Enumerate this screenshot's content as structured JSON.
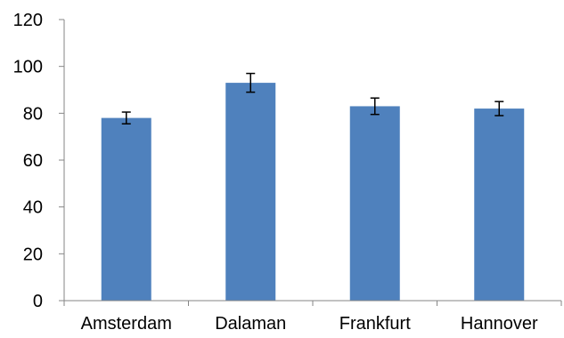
{
  "chart_data": {
    "type": "bar",
    "categories": [
      "Amsterdam",
      "Dalaman",
      "Frankfurt",
      "Hannover"
    ],
    "values": [
      78,
      93,
      83,
      82
    ],
    "error": [
      2.5,
      4,
      3.5,
      3
    ],
    "ylim": [
      0,
      120
    ],
    "yticks": [
      "0",
      "20",
      "40",
      "60",
      "80",
      "100",
      "120"
    ],
    "bar_color": "#4F81BD",
    "grid": false,
    "legend": "none"
  }
}
